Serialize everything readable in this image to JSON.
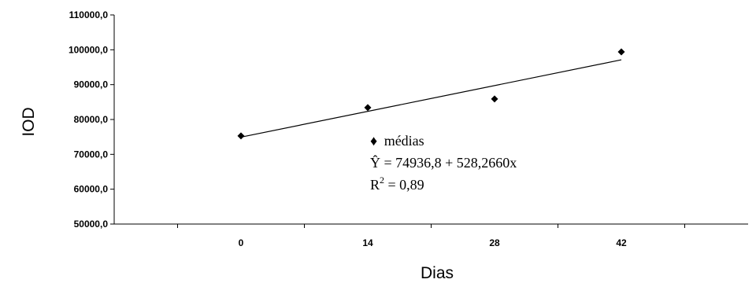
{
  "chart_data": {
    "type": "scatter",
    "title": "",
    "xlabel": "Dias",
    "ylabel": "IOD",
    "x_categories": [
      "0",
      "14",
      "28",
      "42"
    ],
    "x_values": [
      0,
      14,
      28,
      42
    ],
    "xlim": [
      -14,
      56
    ],
    "ylim": [
      50000,
      110000
    ],
    "y_ticks": [
      "50000,0",
      "60000,0",
      "70000,0",
      "80000,0",
      "90000,0",
      "100000,0",
      "110000,0"
    ],
    "y_tick_values": [
      50000,
      60000,
      70000,
      80000,
      90000,
      100000,
      110000
    ],
    "series": [
      {
        "name": "médias",
        "marker": "diamond",
        "color": "#000000",
        "points": [
          {
            "x": 0,
            "y": 75300
          },
          {
            "x": 14,
            "y": 83400
          },
          {
            "x": 28,
            "y": 85900
          },
          {
            "x": 42,
            "y": 99400
          }
        ]
      }
    ],
    "trendline": {
      "intercept": 74936.8,
      "slope": 528.266,
      "x_range": [
        0,
        42
      ]
    },
    "grid": false,
    "legend": {
      "marker": "♦",
      "text": "médias"
    },
    "annotation": {
      "equation_hat": "Ŷ",
      "equation_rest": " = 74936,8 + 528,2660x",
      "r2_base": "R",
      "r2_exp": "2",
      "r2_rest": " = 0,89"
    }
  }
}
